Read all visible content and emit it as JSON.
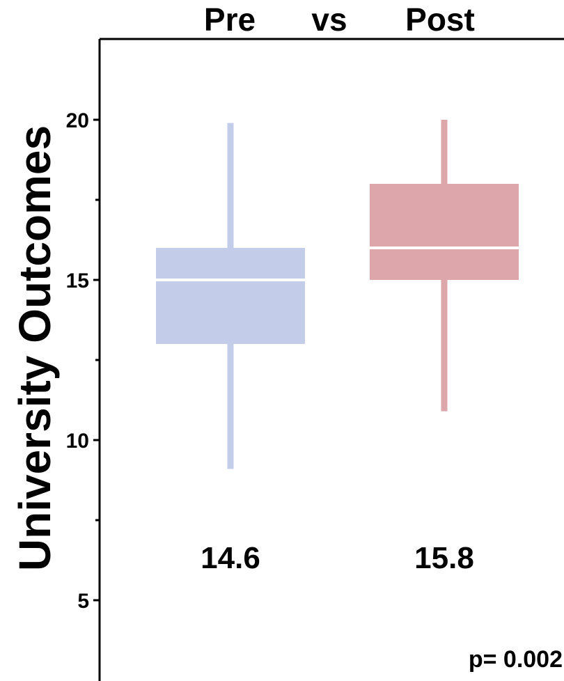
{
  "chart_data": {
    "type": "box",
    "title_parts": [
      "Pre",
      "vs",
      "Post"
    ],
    "ylabel": "University Outcomes",
    "ylim": [
      2.5,
      22.5
    ],
    "yticks_labeled": [
      5,
      10,
      15,
      20
    ],
    "yticks_minor": [
      7.5,
      12.5,
      17.5
    ],
    "grid": false,
    "groups": [
      {
        "name": "Pre",
        "min": 9.1,
        "q1": 13,
        "median": 15,
        "q3": 16,
        "max": 19.9,
        "mean_label": "14.6",
        "color": "#c3cce9"
      },
      {
        "name": "Post",
        "min": 10.9,
        "q1": 15,
        "median": 16,
        "q3": 18,
        "max": 20,
        "mean_label": "15.8",
        "color": "#dca6ab"
      }
    ],
    "annotation": "p= 0.002"
  }
}
